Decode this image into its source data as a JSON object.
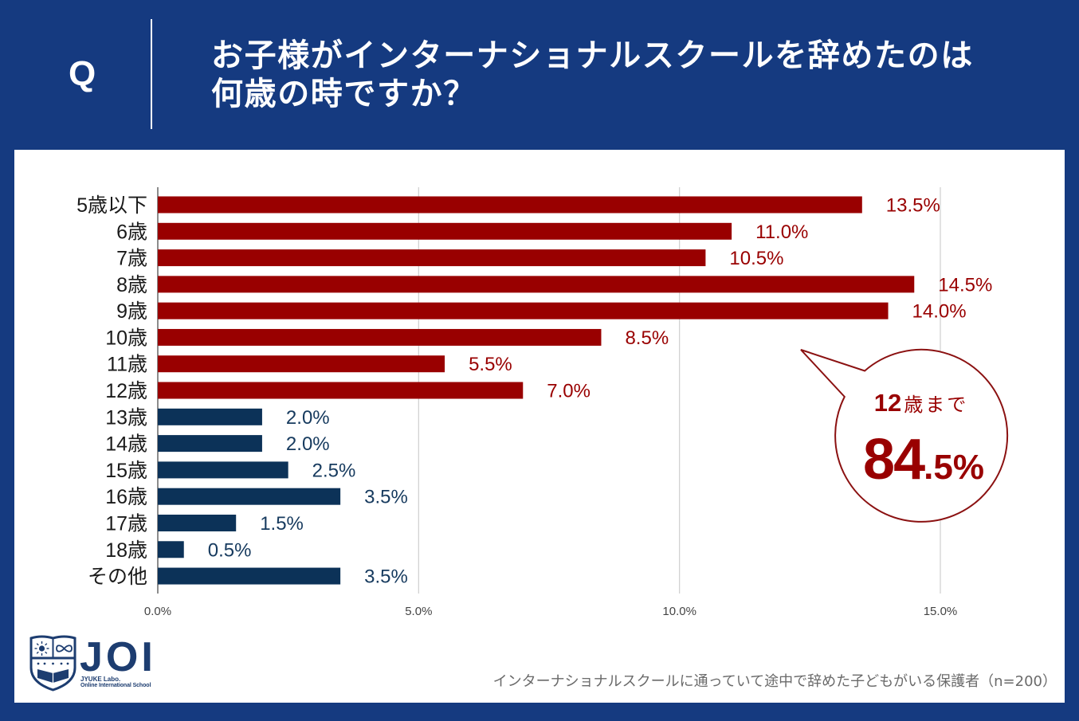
{
  "header": {
    "q_label": "Q",
    "title_line1": "お子様がインターナショナルスクールを辞めたのは",
    "title_line2": "何歳の時ですか？"
  },
  "colors": {
    "header_bg": "#153a80",
    "panel_bg": "#ffffff",
    "accent_red": "#990000",
    "navy_bar": "#0c3258",
    "navy_label": "#163a5e",
    "grid": "#cfcfcf",
    "axis": "#666666"
  },
  "chart_data": {
    "type": "bar",
    "orientation": "horizontal",
    "title": "",
    "xlabel": "",
    "ylabel": "",
    "categories": [
      "5歳以下",
      "6歳",
      "7歳",
      "8歳",
      "9歳",
      "10歳",
      "11歳",
      "12歳",
      "13歳",
      "14歳",
      "15歳",
      "16歳",
      "17歳",
      "18歳",
      "その他"
    ],
    "values": [
      13.5,
      11.0,
      10.5,
      14.5,
      14.0,
      8.5,
      5.5,
      7.0,
      2.0,
      2.0,
      2.5,
      3.5,
      1.5,
      0.5,
      3.5
    ],
    "value_labels": [
      "13.5%",
      "11.0%",
      "10.5%",
      "14.5%",
      "14.0%",
      "8.5%",
      "5.5%",
      "7.0%",
      "2.0%",
      "2.0%",
      "2.5%",
      "3.5%",
      "1.5%",
      "0.5%",
      "3.5%"
    ],
    "bar_colors": [
      "#990000",
      "#990000",
      "#990000",
      "#990000",
      "#990000",
      "#990000",
      "#990000",
      "#990000",
      "#0c3258",
      "#0c3258",
      "#0c3258",
      "#0c3258",
      "#0c3258",
      "#0c3258",
      "#0c3258"
    ],
    "label_colors": [
      "#990000",
      "#990000",
      "#990000",
      "#990000",
      "#990000",
      "#990000",
      "#990000",
      "#990000",
      "#163a5e",
      "#163a5e",
      "#163a5e",
      "#163a5e",
      "#163a5e",
      "#163a5e",
      "#163a5e"
    ],
    "x_ticks": [
      0,
      5,
      10,
      15
    ],
    "x_tick_labels": [
      "0.0%",
      "5.0%",
      "10.0%",
      "15.0%"
    ],
    "xlim": [
      0,
      15
    ],
    "grid": true,
    "legend": "none"
  },
  "callout": {
    "age_number": "12",
    "age_suffix": "歳まで",
    "value_int": "84",
    "value_frac": ".5%"
  },
  "footnote": "インターナショナルスクールに通っていて途中で辞めた子どもがいる保護者（n=200）",
  "logo": {
    "name": "JOI",
    "sub1": "JYUKE Labo.",
    "sub2": "Online International School"
  }
}
